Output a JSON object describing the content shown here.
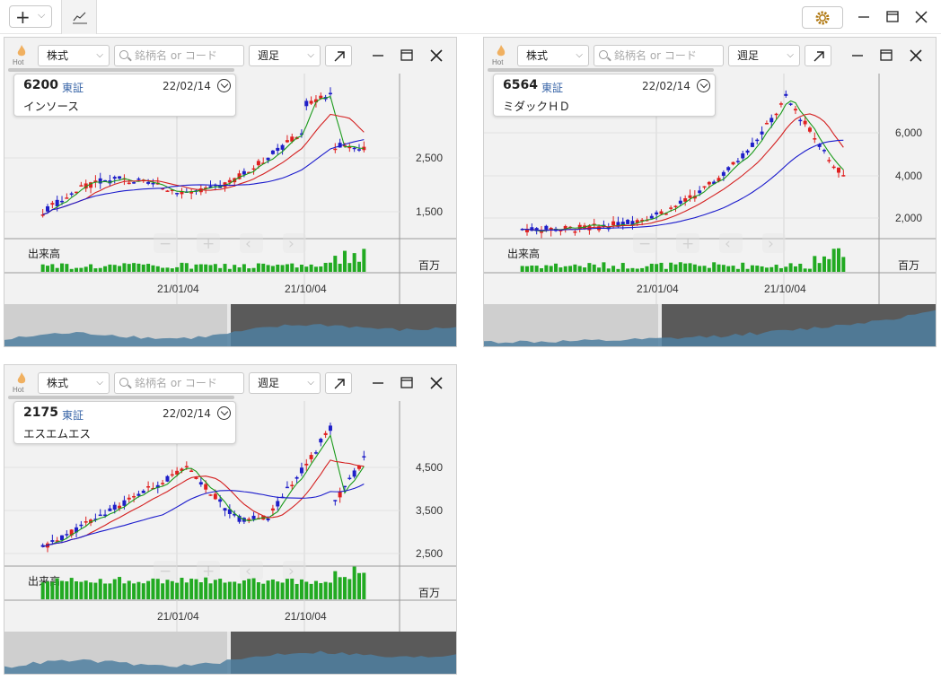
{
  "toolbar": {
    "add_icon": "plus-icon",
    "dropdown_icon": "chevron-down-icon",
    "chart_tab_icon": "chart-line-icon",
    "settings_icon": "gear-icon"
  },
  "window_controls": [
    "minimize-icon",
    "maximize-icon",
    "close-icon"
  ],
  "search_placeholder": "銘柄名 or コード",
  "colors": {
    "up": "#e02020",
    "down": "#1f1fc8",
    "ma_short": "#1a9a1a",
    "ma_mid": "#d42020",
    "ma_long": "#1a1acc",
    "volume": "#22aa22",
    "exchange_text": "#3a66a8"
  },
  "panels": [
    {
      "hot_label": "Hot",
      "type_select": "株式",
      "period_select": "週足",
      "info": {
        "code": "6200",
        "exchange": "東証",
        "date": "22/02/14",
        "name": "インソース"
      },
      "price_ticks": [
        "2,500",
        "1,500"
      ],
      "date_ticks": [
        "21/01/04",
        "21/10/04"
      ],
      "volume_label": "出来高",
      "volume_unit": "百万"
    },
    {
      "hot_label": "Hot",
      "type_select": "株式",
      "period_select": "週足",
      "info": {
        "code": "6564",
        "exchange": "東証",
        "date": "22/02/14",
        "name": "ミダックＨＤ"
      },
      "price_ticks": [
        "6,000",
        "4,000",
        "2,000"
      ],
      "date_ticks": [
        "21/01/04",
        "21/10/04"
      ],
      "volume_label": "出来高",
      "volume_unit": "百万"
    },
    {
      "hot_label": "Hot",
      "type_select": "株式",
      "period_select": "週足",
      "info": {
        "code": "2175",
        "exchange": "東証",
        "date": "22/02/14",
        "name": "エスエムエス"
      },
      "price_ticks": [
        "4,500",
        "3,500",
        "2,500"
      ],
      "date_ticks": [
        "21/01/04",
        "21/10/04"
      ],
      "volume_label": "出来高",
      "volume_unit": "百万"
    }
  ]
}
